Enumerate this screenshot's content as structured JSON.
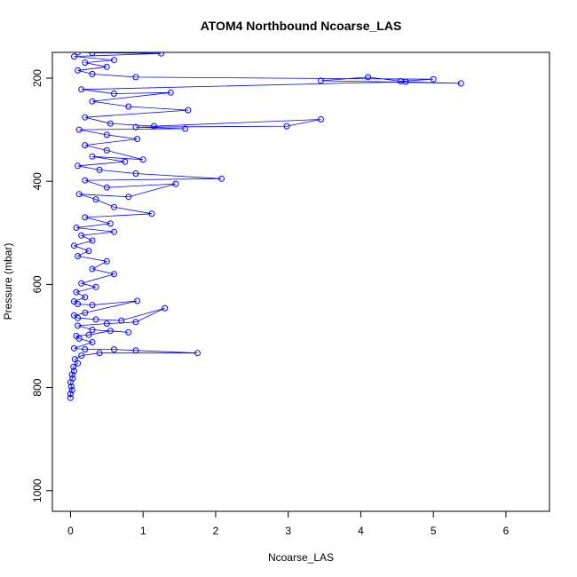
{
  "colors": {
    "series": "#0000ff",
    "frame": "#000000",
    "background": "#ffffff"
  },
  "chart_data": {
    "type": "line",
    "title": "ATOM4 Northbound Ncoarse_LAS",
    "xlabel": "Ncoarse_LAS",
    "ylabel": "Pressure (mbar)",
    "xlim": [
      -0.25,
      6.6
    ],
    "ylim": [
      150,
      1040
    ],
    "y_inverted": true,
    "x_ticks": [
      0,
      1,
      2,
      3,
      4,
      5,
      6
    ],
    "x_tick_labels": [
      "0",
      "1",
      "2",
      "3",
      "4",
      "5",
      "6"
    ],
    "y_ticks": [
      200,
      400,
      600,
      800,
      1000
    ],
    "y_tick_labels": [
      "200",
      "400",
      "600",
      "800",
      "1000"
    ],
    "grid": false,
    "legend": "none",
    "marker": "open-circle",
    "series": [
      {
        "points": [
          [
            0.0,
            820
          ],
          [
            0.0,
            812
          ],
          [
            0.02,
            805
          ],
          [
            0.01,
            798
          ],
          [
            0.0,
            790
          ],
          [
            0.03,
            782
          ],
          [
            0.02,
            775
          ],
          [
            0.05,
            768
          ],
          [
            0.04,
            760
          ],
          [
            0.1,
            753
          ],
          [
            0.06,
            745
          ],
          [
            0.15,
            738
          ],
          [
            0.4,
            733
          ],
          [
            1.75,
            733
          ],
          [
            0.9,
            728
          ],
          [
            0.6,
            726
          ],
          [
            0.2,
            726
          ],
          [
            0.05,
            724
          ],
          [
            0.3,
            712
          ],
          [
            0.12,
            705
          ],
          [
            0.08,
            700
          ],
          [
            0.25,
            698
          ],
          [
            0.55,
            690
          ],
          [
            0.8,
            693
          ],
          [
            0.3,
            688
          ],
          [
            0.1,
            680
          ],
          [
            0.5,
            676
          ],
          [
            0.9,
            673
          ],
          [
            1.3,
            646
          ],
          [
            0.7,
            670
          ],
          [
            0.35,
            668
          ],
          [
            0.1,
            665
          ],
          [
            0.05,
            660
          ],
          [
            0.2,
            655
          ],
          [
            0.92,
            632
          ],
          [
            0.3,
            640
          ],
          [
            0.1,
            638
          ],
          [
            0.05,
            633
          ],
          [
            0.2,
            625
          ],
          [
            0.08,
            615
          ],
          [
            0.35,
            605
          ],
          [
            0.15,
            598
          ],
          [
            0.6,
            580
          ],
          [
            0.3,
            570
          ],
          [
            0.5,
            555
          ],
          [
            0.1,
            545
          ],
          [
            0.25,
            535
          ],
          [
            0.05,
            525
          ],
          [
            0.3,
            515
          ],
          [
            0.15,
            505
          ],
          [
            0.6,
            498
          ],
          [
            0.08,
            490
          ],
          [
            0.55,
            482
          ],
          [
            0.2,
            470
          ],
          [
            1.12,
            463
          ],
          [
            0.6,
            450
          ],
          [
            0.35,
            435
          ],
          [
            0.12,
            425
          ],
          [
            0.8,
            430
          ],
          [
            1.45,
            405
          ],
          [
            0.5,
            412
          ],
          [
            0.2,
            398
          ],
          [
            2.08,
            395
          ],
          [
            0.9,
            385
          ],
          [
            0.4,
            378
          ],
          [
            0.1,
            370
          ],
          [
            0.75,
            362
          ],
          [
            0.3,
            352
          ],
          [
            1.0,
            358
          ],
          [
            0.5,
            340
          ],
          [
            0.2,
            330
          ],
          [
            0.92,
            318
          ],
          [
            0.5,
            310
          ],
          [
            0.12,
            300
          ],
          [
            1.58,
            298
          ],
          [
            0.9,
            295
          ],
          [
            2.98,
            293
          ],
          [
            3.45,
            280
          ],
          [
            1.15,
            293
          ],
          [
            0.55,
            288
          ],
          [
            0.2,
            276
          ],
          [
            1.62,
            262
          ],
          [
            0.8,
            255
          ],
          [
            0.3,
            245
          ],
          [
            1.38,
            228
          ],
          [
            0.6,
            230
          ],
          [
            0.15,
            222
          ],
          [
            4.62,
            207
          ],
          [
            5.38,
            210
          ],
          [
            3.45,
            205
          ],
          [
            4.1,
            198
          ],
          [
            4.55,
            206
          ],
          [
            5.0,
            202
          ],
          [
            0.9,
            198
          ],
          [
            0.3,
            192
          ],
          [
            0.1,
            185
          ],
          [
            0.5,
            178
          ],
          [
            0.2,
            170
          ],
          [
            0.6,
            165
          ],
          [
            0.05,
            158
          ],
          [
            1.25,
            152
          ],
          [
            0.3,
            151
          ],
          [
            0.1,
            150
          ]
        ]
      }
    ]
  }
}
